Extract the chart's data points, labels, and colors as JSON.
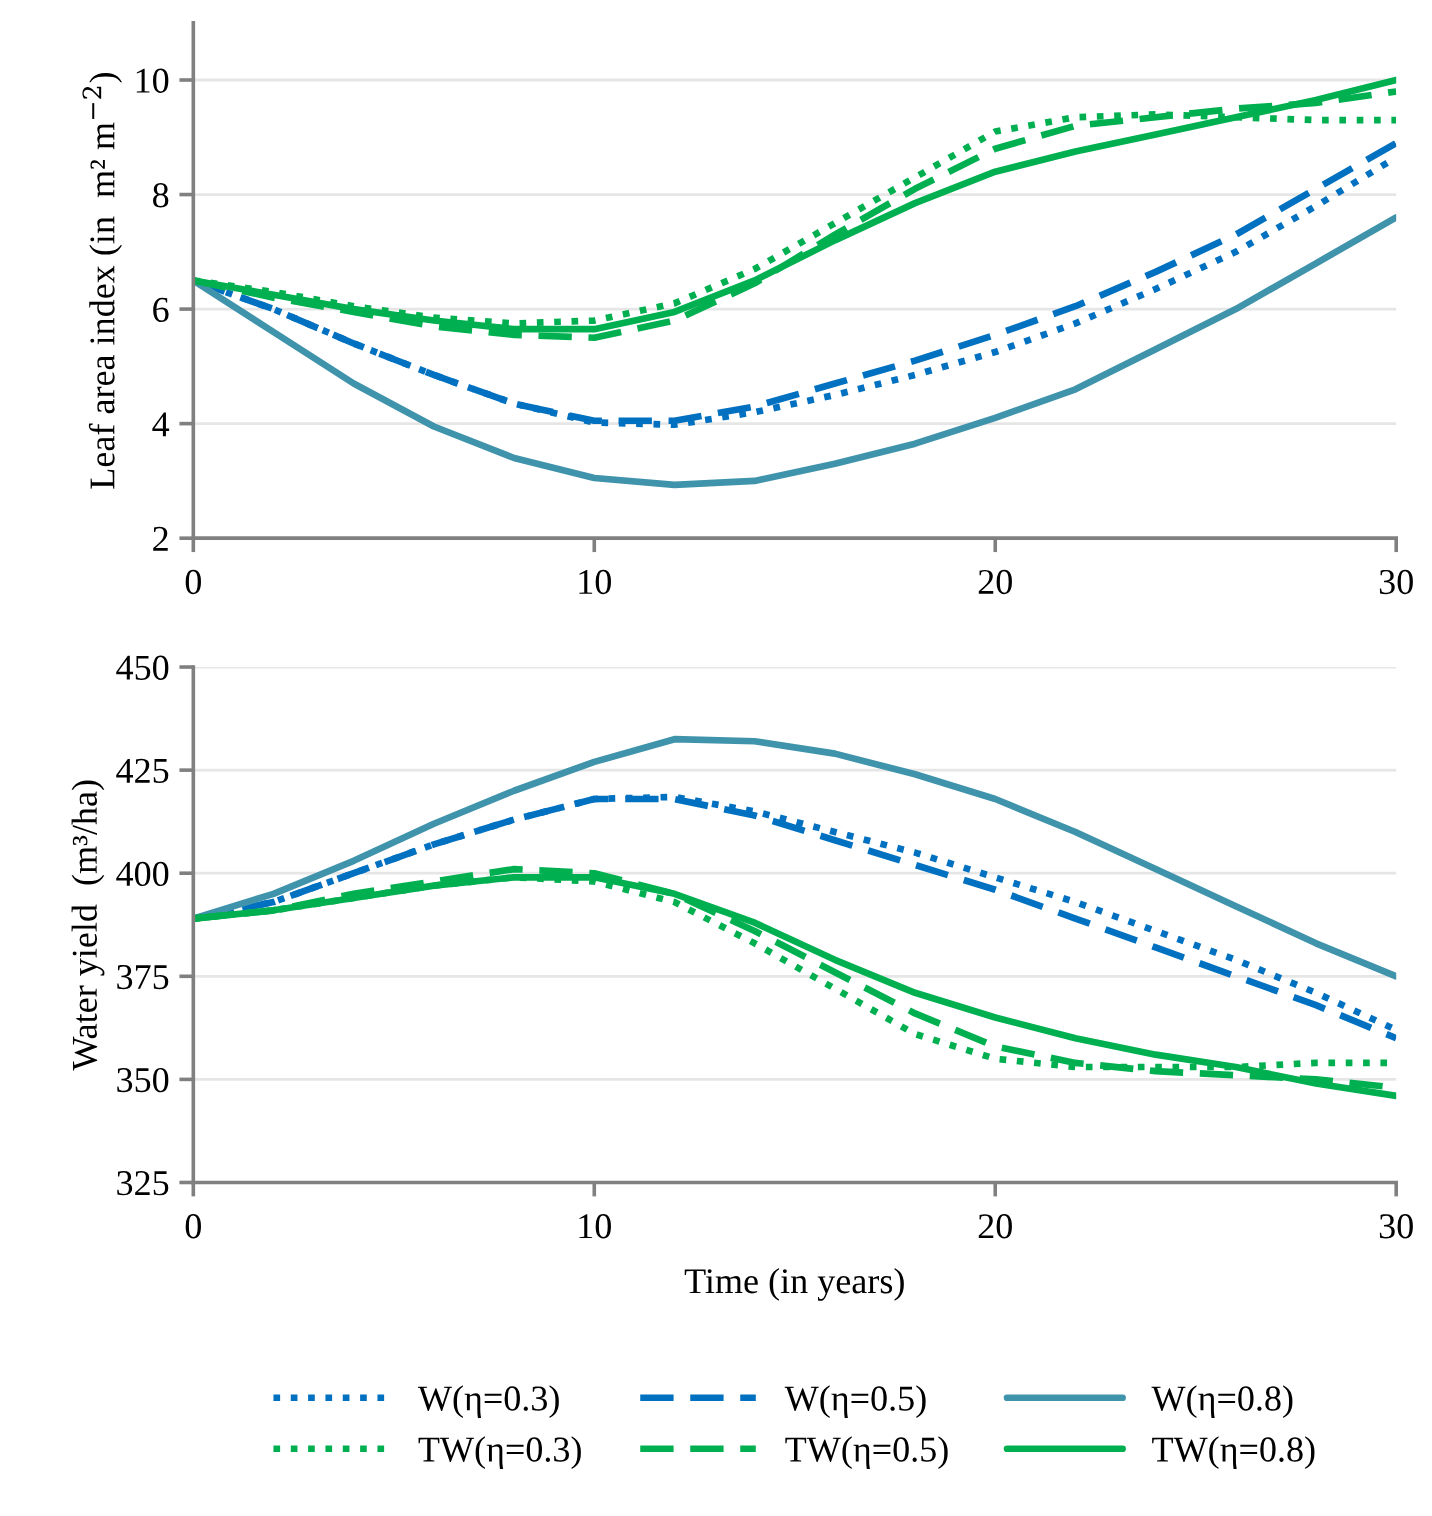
{
  "chart_data": [
    {
      "type": "line",
      "ylabel": "Leaf area index (in  m² m$^{−2}$)",
      "x": [
        0,
        2,
        4,
        6,
        8,
        10,
        12,
        14,
        16,
        18,
        20,
        22,
        24,
        26,
        28,
        30
      ],
      "xlim": [
        0,
        30
      ],
      "xticks": [
        0,
        10,
        20,
        30
      ],
      "ylim": [
        2,
        11
      ],
      "yticks": [
        2,
        4,
        6,
        8,
        10
      ],
      "grid": "y",
      "legend": false,
      "series": [
        {
          "color": "#0070c0",
          "line_style": "dotted",
          "values": [
            6.5,
            6.0,
            5.4,
            4.85,
            4.35,
            4.02,
            3.98,
            4.2,
            4.5,
            4.85,
            5.25,
            5.75,
            6.35,
            7.0,
            7.8,
            8.65
          ]
        },
        {
          "color": "#0070c0",
          "line_style": "dashed",
          "values": [
            6.5,
            6.0,
            5.4,
            4.85,
            4.35,
            4.05,
            4.05,
            4.3,
            4.7,
            5.1,
            5.55,
            6.05,
            6.65,
            7.3,
            8.1,
            8.9
          ]
        },
        {
          "color": "#3f93ab",
          "line_style": "solid",
          "values": [
            6.5,
            5.6,
            4.7,
            3.95,
            3.4,
            3.05,
            2.93,
            3.0,
            3.3,
            3.65,
            4.1,
            4.6,
            5.3,
            6.0,
            6.8,
            7.6
          ]
        },
        {
          "color": "#00b050",
          "line_style": "dotted",
          "values": [
            6.5,
            6.3,
            6.05,
            5.85,
            5.75,
            5.8,
            6.1,
            6.7,
            7.5,
            8.3,
            9.1,
            9.35,
            9.4,
            9.35,
            9.3,
            9.3
          ]
        },
        {
          "color": "#00b050",
          "line_style": "dashed",
          "values": [
            6.5,
            6.2,
            5.95,
            5.7,
            5.55,
            5.5,
            5.8,
            6.45,
            7.3,
            8.1,
            8.8,
            9.2,
            9.35,
            9.5,
            9.6,
            9.8
          ]
        },
        {
          "color": "#00b050",
          "line_style": "solid",
          "values": [
            6.5,
            6.25,
            6.0,
            5.8,
            5.65,
            5.65,
            5.95,
            6.5,
            7.2,
            7.85,
            8.4,
            8.75,
            9.05,
            9.35,
            9.65,
            10.0
          ]
        }
      ]
    },
    {
      "type": "line",
      "ylabel": "Water yield  (m³/ha)",
      "xlabel": "Time (in years)",
      "x": [
        0,
        2,
        4,
        6,
        8,
        10,
        12,
        14,
        16,
        18,
        20,
        22,
        24,
        26,
        28,
        30
      ],
      "xlim": [
        0,
        30
      ],
      "xticks": [
        0,
        10,
        20,
        30
      ],
      "ylim": [
        325,
        450
      ],
      "yticks": [
        325,
        350,
        375,
        400,
        425,
        450
      ],
      "grid": "y",
      "legend": "bottom",
      "series": [
        {
          "name": "W(η=0.3)",
          "color": "#0070c0",
          "line_style": "dotted",
          "values": [
            389,
            393,
            400,
            407,
            413,
            418,
            418.5,
            415,
            410,
            405,
            399,
            393,
            386,
            379,
            371,
            362
          ]
        },
        {
          "name": "W(η=0.5)",
          "color": "#0070c0",
          "line_style": "dashed",
          "values": [
            389,
            393,
            400,
            407,
            413,
            418,
            418,
            414,
            408,
            402,
            396,
            389,
            382,
            375,
            368,
            360
          ]
        },
        {
          "name": "W(η=0.8)",
          "color": "#3f93ab",
          "line_style": "solid",
          "values": [
            389,
            395,
            403,
            412,
            420,
            427,
            432.5,
            432,
            429,
            424,
            418,
            410,
            401,
            392,
            383,
            375
          ]
        },
        {
          "name": "TW(η=0.3)",
          "color": "#00b050",
          "line_style": "dotted",
          "values": [
            389,
            391,
            394,
            397,
            399,
            398,
            393,
            383,
            372,
            361,
            355,
            353,
            353,
            353,
            354,
            354
          ]
        },
        {
          "name": "TW(η=0.5)",
          "color": "#00b050",
          "line_style": "dashed",
          "values": [
            389,
            391,
            395,
            398,
            401,
            400,
            395,
            386,
            376,
            366,
            358,
            354,
            352,
            351,
            350,
            348
          ]
        },
        {
          "name": "TW(η=0.8)",
          "color": "#00b050",
          "line_style": "solid",
          "values": [
            389,
            391,
            394,
            397,
            399,
            399,
            395,
            388,
            379,
            371,
            365,
            360,
            356,
            353,
            349,
            346
          ]
        }
      ]
    }
  ]
}
